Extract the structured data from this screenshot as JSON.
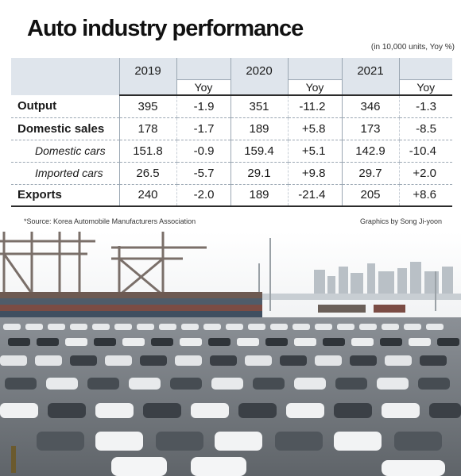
{
  "title": "Auto industry performance",
  "unit_note": "(in 10,000 units, Yoy %)",
  "source": "*Source: Korea Automobile Manufacturers Association",
  "credit": "Graphics by Song Ji-yoon",
  "table": {
    "years": [
      "2019",
      "2020",
      "2021"
    ],
    "yoy_label": "Yoy",
    "rows": [
      {
        "label": "Output",
        "values": [
          "395",
          "-1.9",
          "351",
          "-11.2",
          "346",
          "-1.3"
        ]
      },
      {
        "label": "Domestic sales",
        "values": [
          "178",
          "-1.7",
          "189",
          "+5.8",
          "173",
          "-8.5"
        ]
      },
      {
        "label": "Domestic cars",
        "values": [
          "151.8",
          "-0.9",
          "159.4",
          "+5.1",
          "142.9",
          "-10.4"
        ]
      },
      {
        "label": "Imported cars",
        "values": [
          "26.5",
          "-5.7",
          "29.1",
          "+9.8",
          "29.7",
          "+2.0"
        ]
      },
      {
        "label": "Exports",
        "values": [
          "240",
          "-2.0",
          "189",
          "-21.4",
          "205",
          "+8.6"
        ]
      }
    ]
  },
  "chart_data": {
    "type": "table",
    "title": "Auto industry performance",
    "unit": "(in 10,000 units, Yoy %)",
    "columns": [
      "2019",
      "Yoy",
      "2020",
      "Yoy",
      "2021",
      "Yoy"
    ],
    "rows": [
      {
        "label": "Output",
        "values": [
          395,
          -1.9,
          351,
          -11.2,
          346,
          -1.3
        ]
      },
      {
        "label": "Domestic sales",
        "values": [
          178,
          -1.7,
          189,
          5.8,
          173,
          -8.5
        ]
      },
      {
        "label": "Domestic cars",
        "values": [
          151.8,
          -0.9,
          159.4,
          5.1,
          142.9,
          -10.4
        ]
      },
      {
        "label": "Imported cars",
        "values": [
          26.5,
          -5.7,
          29.1,
          9.8,
          29.7,
          2.0
        ]
      },
      {
        "label": "Exports",
        "values": [
          240,
          -2.0,
          189,
          -21.4,
          205,
          8.6
        ]
      }
    ]
  },
  "colors": {
    "header_fill": "#dfe5ec",
    "rule": "#2b2b2b"
  }
}
